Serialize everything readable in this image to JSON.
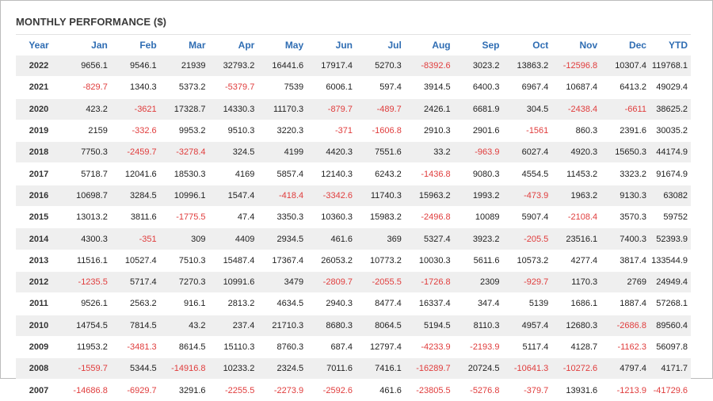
{
  "title": "MONTHLY PERFORMANCE ($)",
  "colors": {
    "negative": "#e03c3c",
    "header": "#2f6db3",
    "stripe": "#efefef"
  },
  "columns": [
    "Year",
    "Jan",
    "Feb",
    "Mar",
    "Apr",
    "May",
    "Jun",
    "Jul",
    "Aug",
    "Sep",
    "Oct",
    "Nov",
    "Dec",
    "YTD"
  ],
  "rows": [
    {
      "year": "2022",
      "cells": [
        "9656.1",
        "9546.1",
        "21939",
        "32793.2",
        "16441.6",
        "17917.4",
        "5270.3",
        "-8392.6",
        "3023.2",
        "13863.2",
        "-12596.8",
        "10307.4",
        "119768.1"
      ]
    },
    {
      "year": "2021",
      "cells": [
        "-829.7",
        "1340.3",
        "5373.2",
        "-5379.7",
        "7539",
        "6006.1",
        "597.4",
        "3914.5",
        "6400.3",
        "6967.4",
        "10687.4",
        "6413.2",
        "49029.4"
      ]
    },
    {
      "year": "2020",
      "cells": [
        "423.2",
        "-3621",
        "17328.7",
        "14330.3",
        "11170.3",
        "-879.7",
        "-489.7",
        "2426.1",
        "6681.9",
        "304.5",
        "-2438.4",
        "-6611",
        "38625.2"
      ]
    },
    {
      "year": "2019",
      "cells": [
        "2159",
        "-332.6",
        "9953.2",
        "9510.3",
        "3220.3",
        "-371",
        "-1606.8",
        "2910.3",
        "2901.6",
        "-1561",
        "860.3",
        "2391.6",
        "30035.2"
      ]
    },
    {
      "year": "2018",
      "cells": [
        "7750.3",
        "-2459.7",
        "-3278.4",
        "324.5",
        "4199",
        "4420.3",
        "7551.6",
        "33.2",
        "-963.9",
        "6027.4",
        "4920.3",
        "15650.3",
        "44174.9"
      ]
    },
    {
      "year": "2017",
      "cells": [
        "5718.7",
        "12041.6",
        "18530.3",
        "4169",
        "5857.4",
        "12140.3",
        "6243.2",
        "-1436.8",
        "9080.3",
        "4554.5",
        "11453.2",
        "3323.2",
        "91674.9"
      ]
    },
    {
      "year": "2016",
      "cells": [
        "10698.7",
        "3284.5",
        "10996.1",
        "1547.4",
        "-418.4",
        "-3342.6",
        "11740.3",
        "15963.2",
        "1993.2",
        "-473.9",
        "1963.2",
        "9130.3",
        "63082"
      ]
    },
    {
      "year": "2015",
      "cells": [
        "13013.2",
        "3811.6",
        "-1775.5",
        "47.4",
        "3350.3",
        "10360.3",
        "15983.2",
        "-2496.8",
        "10089",
        "5907.4",
        "-2108.4",
        "3570.3",
        "59752"
      ]
    },
    {
      "year": "2014",
      "cells": [
        "4300.3",
        "-351",
        "309",
        "4409",
        "2934.5",
        "461.6",
        "369",
        "5327.4",
        "3923.2",
        "-205.5",
        "23516.1",
        "7400.3",
        "52393.9"
      ]
    },
    {
      "year": "2013",
      "cells": [
        "11516.1",
        "10527.4",
        "7510.3",
        "15487.4",
        "17367.4",
        "26053.2",
        "10773.2",
        "10030.3",
        "5611.6",
        "10573.2",
        "4277.4",
        "3817.4",
        "133544.9"
      ]
    },
    {
      "year": "2012",
      "cells": [
        "-1235.5",
        "5717.4",
        "7270.3",
        "10991.6",
        "3479",
        "-2809.7",
        "-2055.5",
        "-1726.8",
        "2309",
        "-929.7",
        "1170.3",
        "2769",
        "24949.4"
      ]
    },
    {
      "year": "2011",
      "cells": [
        "9526.1",
        "2563.2",
        "916.1",
        "2813.2",
        "4634.5",
        "2940.3",
        "8477.4",
        "16337.4",
        "347.4",
        "5139",
        "1686.1",
        "1887.4",
        "57268.1"
      ]
    },
    {
      "year": "2010",
      "cells": [
        "14754.5",
        "7814.5",
        "43.2",
        "237.4",
        "21710.3",
        "8680.3",
        "8064.5",
        "5194.5",
        "8110.3",
        "4957.4",
        "12680.3",
        "-2686.8",
        "89560.4"
      ]
    },
    {
      "year": "2009",
      "cells": [
        "11953.2",
        "-3481.3",
        "8614.5",
        "15110.3",
        "8760.3",
        "687.4",
        "12797.4",
        "-4233.9",
        "-2193.9",
        "5117.4",
        "4128.7",
        "-1162.3",
        "56097.8"
      ]
    },
    {
      "year": "2008",
      "cells": [
        "-1559.7",
        "5344.5",
        "-14916.8",
        "10233.2",
        "2324.5",
        "7011.6",
        "7416.1",
        "-16289.7",
        "20724.5",
        "-10641.3",
        "-10272.6",
        "4797.4",
        "4171.7"
      ]
    },
    {
      "year": "2007",
      "cells": [
        "-14686.8",
        "-6929.7",
        "3291.6",
        "-2255.5",
        "-2273.9",
        "-2592.6",
        "461.6",
        "-23805.5",
        "-5276.8",
        "-379.7",
        "13931.6",
        "-1213.9",
        "-41729.6"
      ]
    }
  ]
}
